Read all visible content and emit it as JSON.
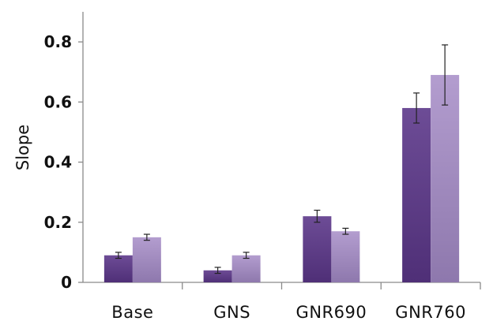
{
  "chart_data": {
    "type": "bar",
    "title": "",
    "xlabel": "",
    "ylabel": "Slope",
    "ylim": [
      0,
      0.9
    ],
    "yticks": [
      "0",
      "0.2",
      "0.4",
      "0.6",
      "0.8"
    ],
    "ytick_values": [
      0,
      0.2,
      0.4,
      0.6,
      0.8
    ],
    "categories": [
      "Base",
      "GNS",
      "GNR690",
      "GNR760"
    ],
    "series": [
      {
        "values": [
          0.09,
          0.04,
          0.22,
          0.58
        ],
        "errors": [
          0.01,
          0.01,
          0.02,
          0.05
        ],
        "color_top": "#6d4c96",
        "color_bottom": "#4f2f77"
      },
      {
        "values": [
          0.15,
          0.09,
          0.17,
          0.69
        ],
        "errors": [
          0.01,
          0.01,
          0.01,
          0.1
        ],
        "color_top": "#b39dcf",
        "color_bottom": "#8e78ad"
      }
    ],
    "grid": false,
    "legend": "none"
  }
}
